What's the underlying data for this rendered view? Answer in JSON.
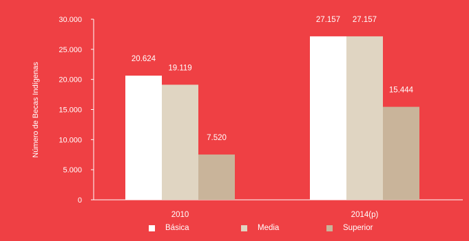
{
  "chart_data": {
    "type": "bar",
    "categories": [
      "2010",
      "2014(p)"
    ],
    "series": [
      {
        "name": "Básica",
        "values": [
          20624,
          27157
        ],
        "labels": [
          "20.624",
          "27.157"
        ],
        "color": "#ffffff"
      },
      {
        "name": "Media",
        "values": [
          19119,
          27157
        ],
        "labels": [
          "19.119",
          "27.157"
        ],
        "color": "#e0d5c2"
      },
      {
        "name": "Superior",
        "values": [
          7520,
          15444
        ],
        "labels": [
          "7.520",
          "15.444"
        ],
        "color": "#c9b49a"
      }
    ],
    "title": "",
    "xlabel": "",
    "ylabel": "Número de Becas Indígenas",
    "ylim": [
      0,
      30000
    ],
    "yticks": [
      0,
      5000,
      10000,
      15000,
      20000,
      25000,
      30000
    ],
    "ytick_labels": [
      "0",
      "5.000",
      "10.000",
      "15.000",
      "20.000",
      "25.000",
      "30.000"
    ],
    "grid": false,
    "legend_position": "bottom",
    "background_color": "#ef4044",
    "axis_color": "#ffffff"
  }
}
